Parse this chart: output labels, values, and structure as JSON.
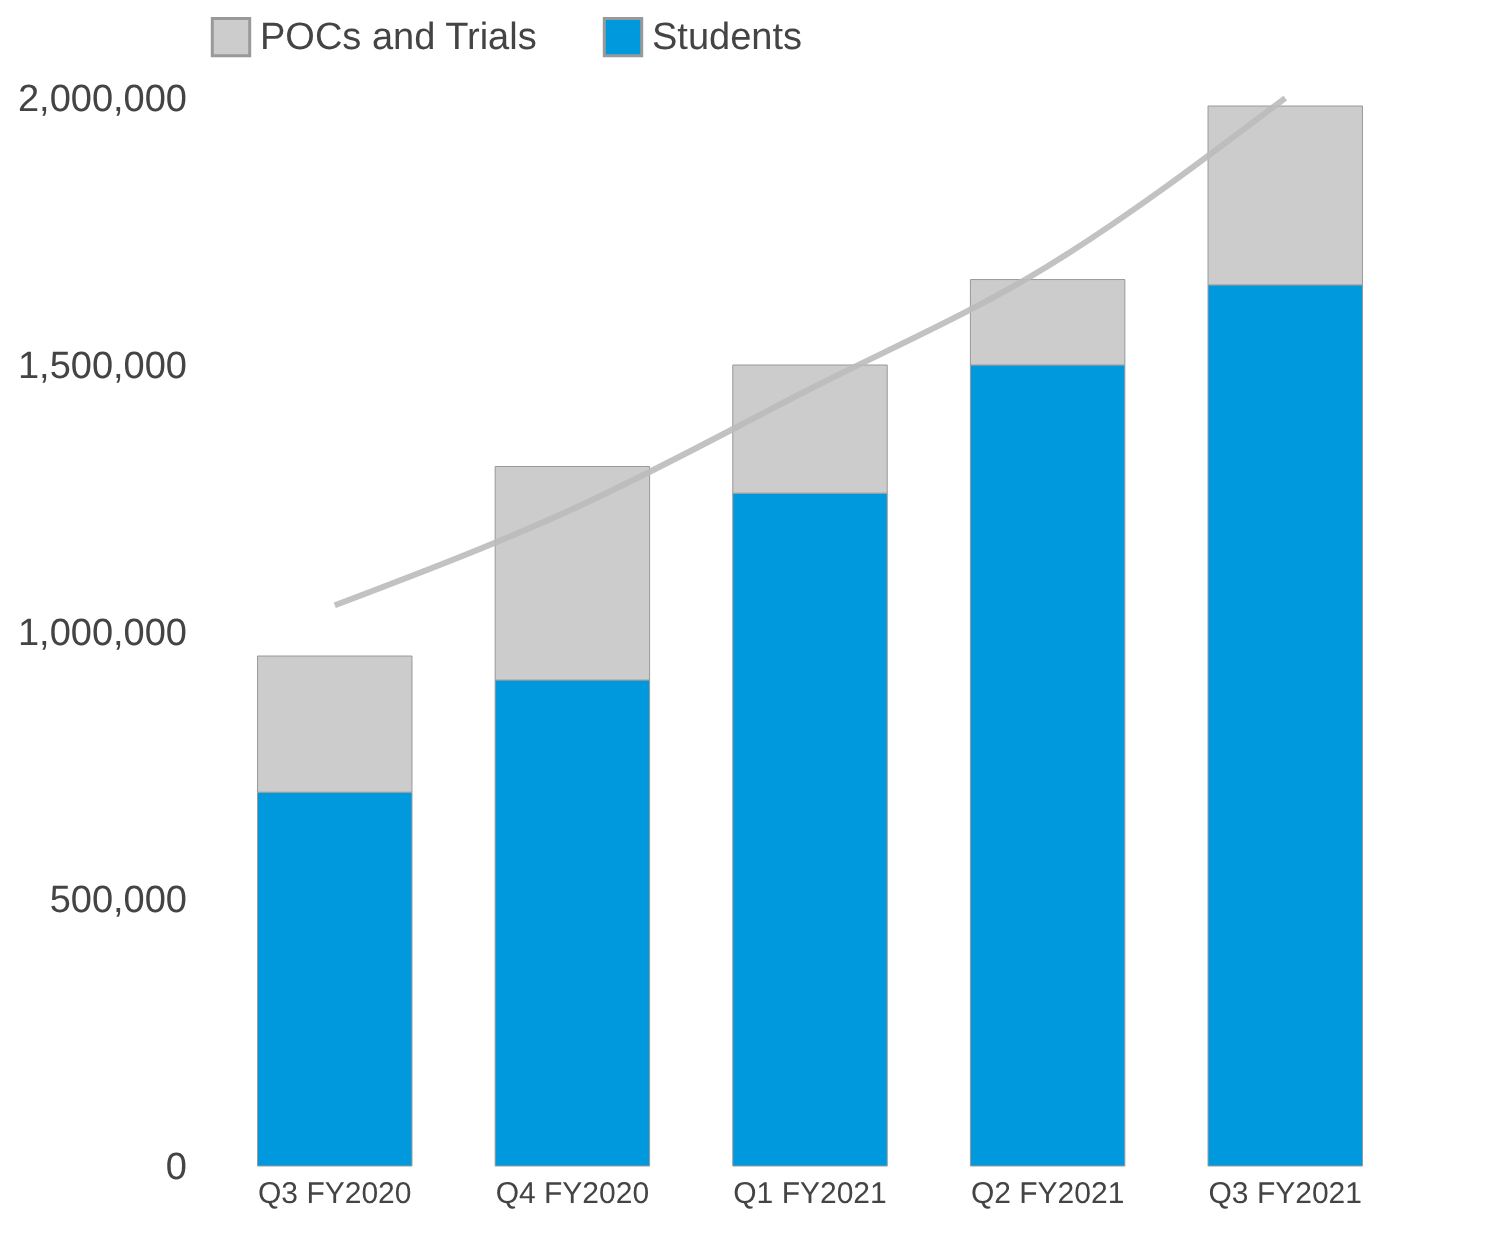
{
  "chart_data": {
    "type": "bar",
    "stacked": true,
    "categories": [
      "Q3 FY2020",
      "Q4 FY2020",
      "Q1 FY2021",
      "Q2 FY2021",
      "Q3 FY2021"
    ],
    "series": [
      {
        "name": "Students",
        "color": "#0099dd",
        "values": [
          700000,
          910000,
          1260000,
          1500000,
          1650000
        ]
      },
      {
        "name": "POCs and Trials",
        "color": "#cccccc",
        "values": [
          255000,
          400000,
          240000,
          160000,
          335000
        ]
      },
      {
        "type": "line",
        "color": "#bbbbbb",
        "values": [
          1050000,
          1230000,
          1455000,
          1685000,
          2000000
        ]
      }
    ],
    "ylim": [
      0,
      2000000
    ],
    "yticks": [
      0,
      {
        "value": 500000,
        "label": "500,000"
      },
      {
        "value": 1000000,
        "label": "1,000,000"
      },
      {
        "value": 1500000,
        "label": "1,500,000"
      },
      {
        "value": 2000000,
        "label": "2,000,000"
      }
    ],
    "grid": false,
    "legend": "top"
  }
}
